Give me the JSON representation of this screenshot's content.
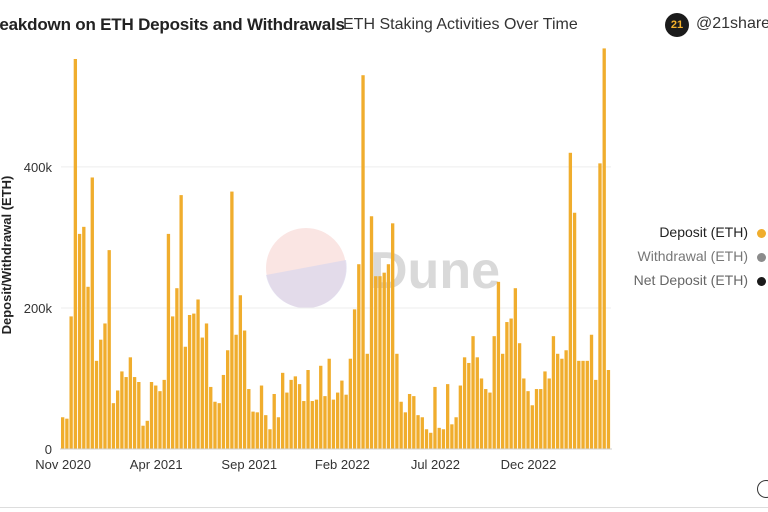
{
  "header": {
    "title": "reakdown on ETH Deposits and Withdrawals",
    "subtitle": "ETH Staking Activities Over Time",
    "brand_logo": "21",
    "brand_handle": "@21share"
  },
  "watermark": "Dune",
  "colors": {
    "deposit": "#f0ad2d",
    "withdrawal": "#8b8b8b",
    "net_deposit": "#1a1a1a",
    "grid": "#eeeeee"
  },
  "chart_data": {
    "type": "bar",
    "ylabel": "Deposit/Withdrawal (ETH)",
    "ylim": [
      0,
      570000
    ],
    "yticks": [
      0,
      200000,
      400000
    ],
    "ytick_labels": [
      "0",
      "200k",
      "400k"
    ],
    "xticks": [
      {
        "label": "Nov 2020",
        "index": 0
      },
      {
        "label": "Apr 2021",
        "index": 22
      },
      {
        "label": "Sep 2021",
        "index": 44
      },
      {
        "label": "Feb 2022",
        "index": 66
      },
      {
        "label": "Jul 2022",
        "index": 88
      },
      {
        "label": "Dec 2022",
        "index": 110
      }
    ],
    "grid": true,
    "legend_position": "right",
    "legend": [
      {
        "name": "Deposit (ETH)",
        "color": "#f0ad2d"
      },
      {
        "name": "Withdrawal (ETH)",
        "color": "#8b8b8b"
      },
      {
        "name": "Net Deposit (ETH)",
        "color": "#1a1a1a"
      }
    ],
    "series": [
      {
        "name": "Deposit (ETH)",
        "values": [
          45000,
          43000,
          188000,
          553000,
          305000,
          315000,
          230000,
          385000,
          125000,
          155000,
          178000,
          282000,
          65000,
          83000,
          110000,
          102000,
          130000,
          102000,
          95000,
          33000,
          40000,
          95000,
          90000,
          82000,
          98000,
          305000,
          188000,
          228000,
          360000,
          145000,
          190000,
          192000,
          212000,
          158000,
          178000,
          88000,
          67000,
          65000,
          105000,
          140000,
          365000,
          162000,
          218000,
          168000,
          85000,
          53000,
          52000,
          90000,
          48000,
          28000,
          78000,
          45000,
          108000,
          80000,
          98000,
          103000,
          92000,
          68000,
          112000,
          68000,
          70000,
          118000,
          75000,
          128000,
          70000,
          80000,
          97000,
          77000,
          128000,
          198000,
          262000,
          530000,
          135000,
          330000,
          245000,
          245000,
          250000,
          262000,
          320000,
          135000,
          67000,
          52000,
          78000,
          75000,
          48000,
          45000,
          28000,
          23000,
          88000,
          30000,
          28000,
          92000,
          35000,
          45000,
          90000,
          130000,
          122000,
          160000,
          130000,
          100000,
          85000,
          80000,
          160000,
          237000,
          135000,
          180000,
          185000,
          228000,
          150000,
          100000,
          82000,
          62000,
          85000,
          85000,
          110000,
          100000,
          160000,
          135000,
          128000,
          140000,
          420000,
          335000,
          125000,
          125000,
          125000,
          162000,
          98000,
          405000,
          568000,
          112000
        ]
      }
    ]
  }
}
